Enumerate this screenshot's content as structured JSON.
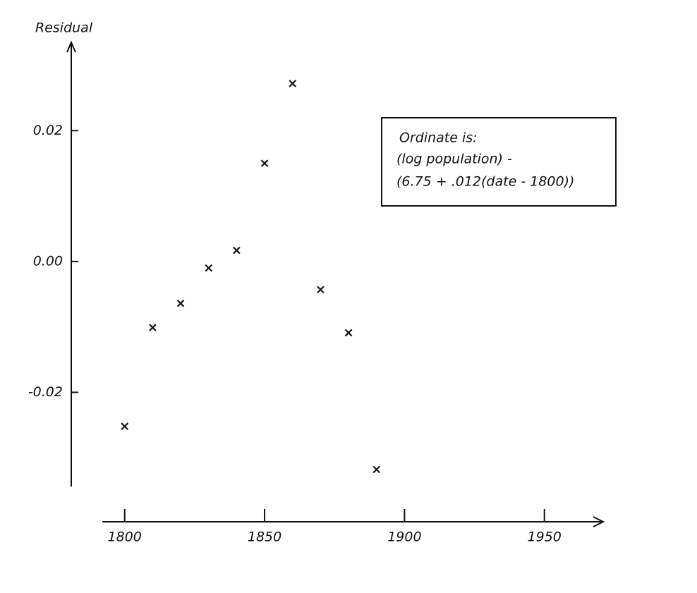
{
  "chart_data": {
    "type": "scatter",
    "y_label": "Residual",
    "annotation": [
      "Ordinate is:",
      "(log population) -",
      "(6.75 + .012(date - 1800))"
    ],
    "x": [
      1800,
      1810,
      1820,
      1830,
      1840,
      1850,
      1860,
      1870,
      1880,
      1890
    ],
    "values": [
      -0.0252,
      -0.0101,
      -0.0064,
      -0.001,
      0.0017,
      0.015,
      0.0272,
      -0.0043,
      -0.0109,
      -0.0318
    ],
    "color": "#111111",
    "xlim": [
      1792,
      1971
    ],
    "xticks": [
      1800,
      1850,
      1900,
      1950
    ],
    "ylim": [
      -0.0344,
      0.0335
    ],
    "yticks": [
      0.02,
      {
        "value": 0,
        "label": "0.00"
      },
      -0.02
    ]
  }
}
